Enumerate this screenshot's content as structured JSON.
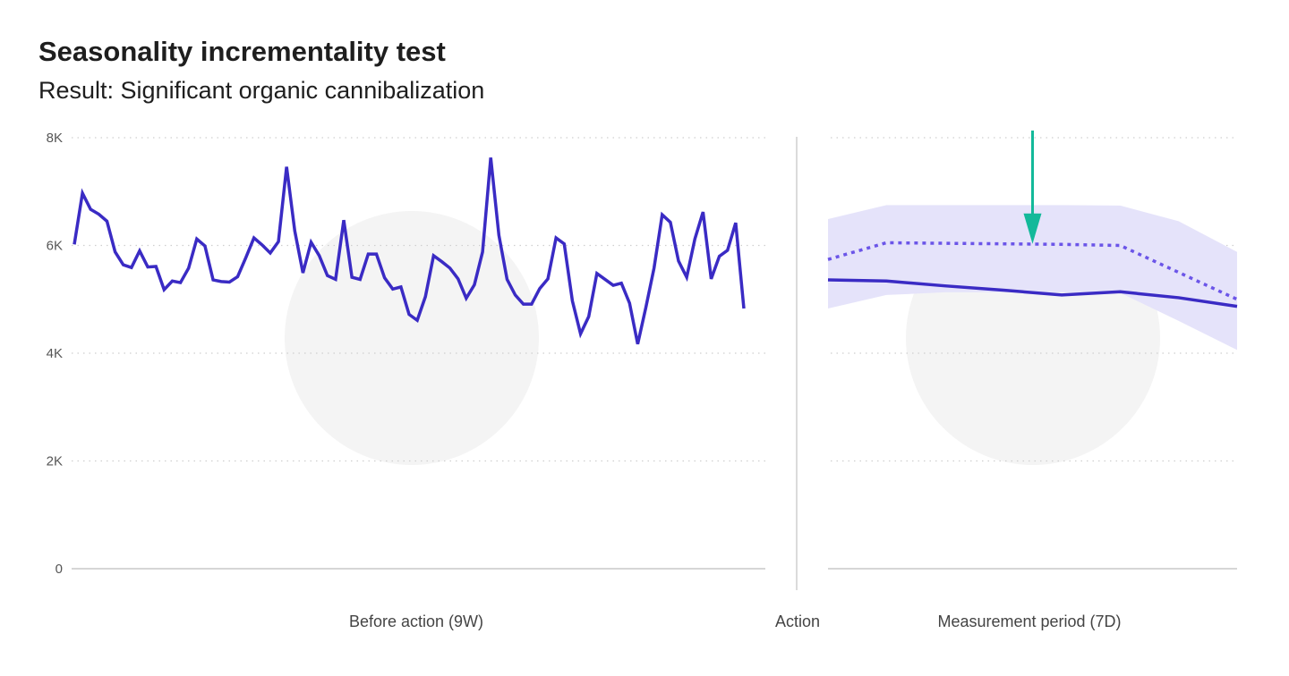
{
  "title": "Seasonality incrementality test",
  "subtitle": "Result: Significant organic cannibalization",
  "colors": {
    "actual": "#3a2bc4",
    "counterfactual": "#6b55e8",
    "band": "#e5e3fa",
    "arrow": "#13b99a",
    "watermark": "#f4f4f4"
  },
  "chart_data": {
    "type": "line",
    "title": "Seasonality incrementality test",
    "subtitle": "Result: Significant organic cannibalization",
    "ylim": [
      0,
      8000
    ],
    "yticks": [
      0,
      2000,
      4000,
      6000,
      8000
    ],
    "ytick_labels": [
      "0",
      "2K",
      "4K",
      "6K",
      "8K"
    ],
    "grid": true,
    "legend": "none",
    "panels": [
      {
        "xlabel": "Before action (9W)",
        "series": [
          {
            "style": "solid",
            "values": [
              6020,
              6970,
              6670,
              6580,
              6450,
              5880,
              5640,
              5590,
              5900,
              5600,
              5610,
              5180,
              5340,
              5310,
              5580,
              6120,
              5990,
              5360,
              5330,
              5320,
              5420,
              5770,
              6140,
              6010,
              5860,
              6070,
              7460,
              6270,
              5490,
              6060,
              5810,
              5440,
              5370,
              6470,
              5410,
              5370,
              5840,
              5840,
              5400,
              5190,
              5230,
              4720,
              4610,
              5050,
              5810,
              5700,
              5580,
              5380,
              5020,
              5270,
              5880,
              7630,
              6190,
              5370,
              5080,
              4910,
              4910,
              5200,
              5380,
              6140,
              6030,
              4970,
              4360,
              4680,
              5480,
              5370,
              5260,
              5300,
              4930,
              4170,
              4850,
              5580,
              6570,
              6430,
              5710,
              5410,
              6120,
              6620,
              5380,
              5800,
              5910,
              6420,
              4830
            ]
          }
        ]
      },
      {
        "xlabel": "Measurement period (7D)",
        "series": [
          {
            "style": "solid",
            "values": [
              5360,
              5340,
              5250,
              5170,
              5080,
              5140,
              5030,
              4870
            ]
          },
          {
            "style": "dotted",
            "values": [
              5740,
              6050,
              6040,
              6030,
              6020,
              6000,
              5500,
              5000
            ]
          },
          {
            "style": "band",
            "lower": [
              4830,
              5080,
              5130,
              5130,
              5130,
              5120,
              4600,
              4060
            ],
            "upper": [
              6490,
              6750,
              6750,
              6750,
              6750,
              6740,
              6450,
              5880
            ]
          }
        ],
        "annotation": {
          "type": "arrow",
          "x_index": 3.5,
          "points_to": 6030
        }
      }
    ],
    "divider_label": "Action"
  }
}
